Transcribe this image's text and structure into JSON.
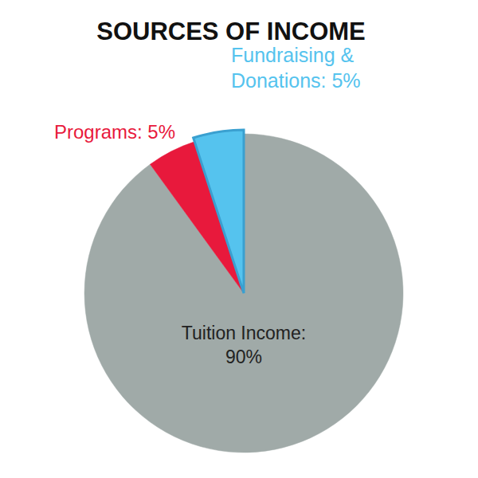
{
  "chart_data": {
    "type": "pie",
    "title": "SOURCES OF INCOME",
    "categories": [
      "Tuition Income: 90%",
      "Programs: 5%",
      "Fundraising & Donations: 5%"
    ],
    "values": [
      90,
      5,
      5
    ],
    "colors": [
      "#a0aaa8",
      "#e8193c",
      "#55c3ee"
    ],
    "data_labels": true
  }
}
